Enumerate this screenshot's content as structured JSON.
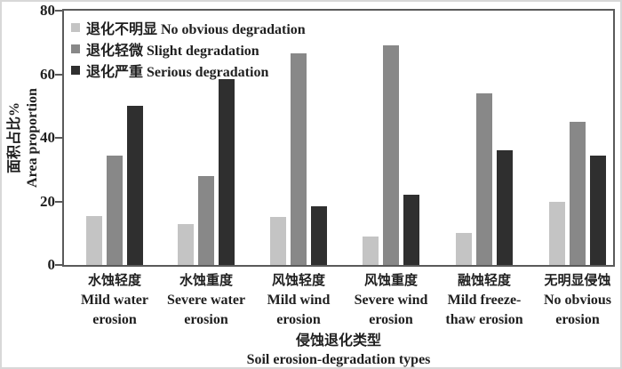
{
  "chart_data": {
    "type": "bar",
    "title": "",
    "grid": false,
    "legend_position": "top-left-inside",
    "y_axis": {
      "label_zh": "面积占比%",
      "label_en": "Area proportion",
      "ticks": [
        0,
        20,
        40,
        60,
        80
      ],
      "min": 0,
      "max": 80
    },
    "x_axis": {
      "title_zh": "侵蚀退化类型",
      "title_en": "Soil erosion-degradation types"
    },
    "categories": [
      {
        "zh": "水蚀轻度",
        "en": [
          "Mild water",
          "erosion"
        ]
      },
      {
        "zh": "水蚀重度",
        "en": [
          "Severe water",
          "erosion"
        ]
      },
      {
        "zh": "风蚀轻度",
        "en": [
          "Mild wind",
          "erosion"
        ]
      },
      {
        "zh": "风蚀重度",
        "en": [
          "Severe wind",
          "erosion"
        ]
      },
      {
        "zh": "融蚀轻度",
        "en": [
          "Mild freeze-",
          "thaw erosion"
        ]
      },
      {
        "zh": "无明显侵蚀",
        "en": [
          "No obvious",
          "erosion"
        ]
      }
    ],
    "series": [
      {
        "name_zh": "退化不明显",
        "name_en": "No obvious degradation",
        "color": "#c4c4c4",
        "values": [
          15.5,
          13,
          15,
          9,
          10,
          20
        ]
      },
      {
        "name_zh": "退化轻微",
        "name_en": "Slight degradation",
        "color": "#888888",
        "values": [
          34.5,
          28,
          66.5,
          69,
          54,
          45
        ]
      },
      {
        "name_zh": "退化严重",
        "name_en": "Serious degradation",
        "color": "#2f2f2f",
        "values": [
          50,
          58.5,
          18.5,
          22,
          36,
          34.5
        ]
      }
    ]
  }
}
